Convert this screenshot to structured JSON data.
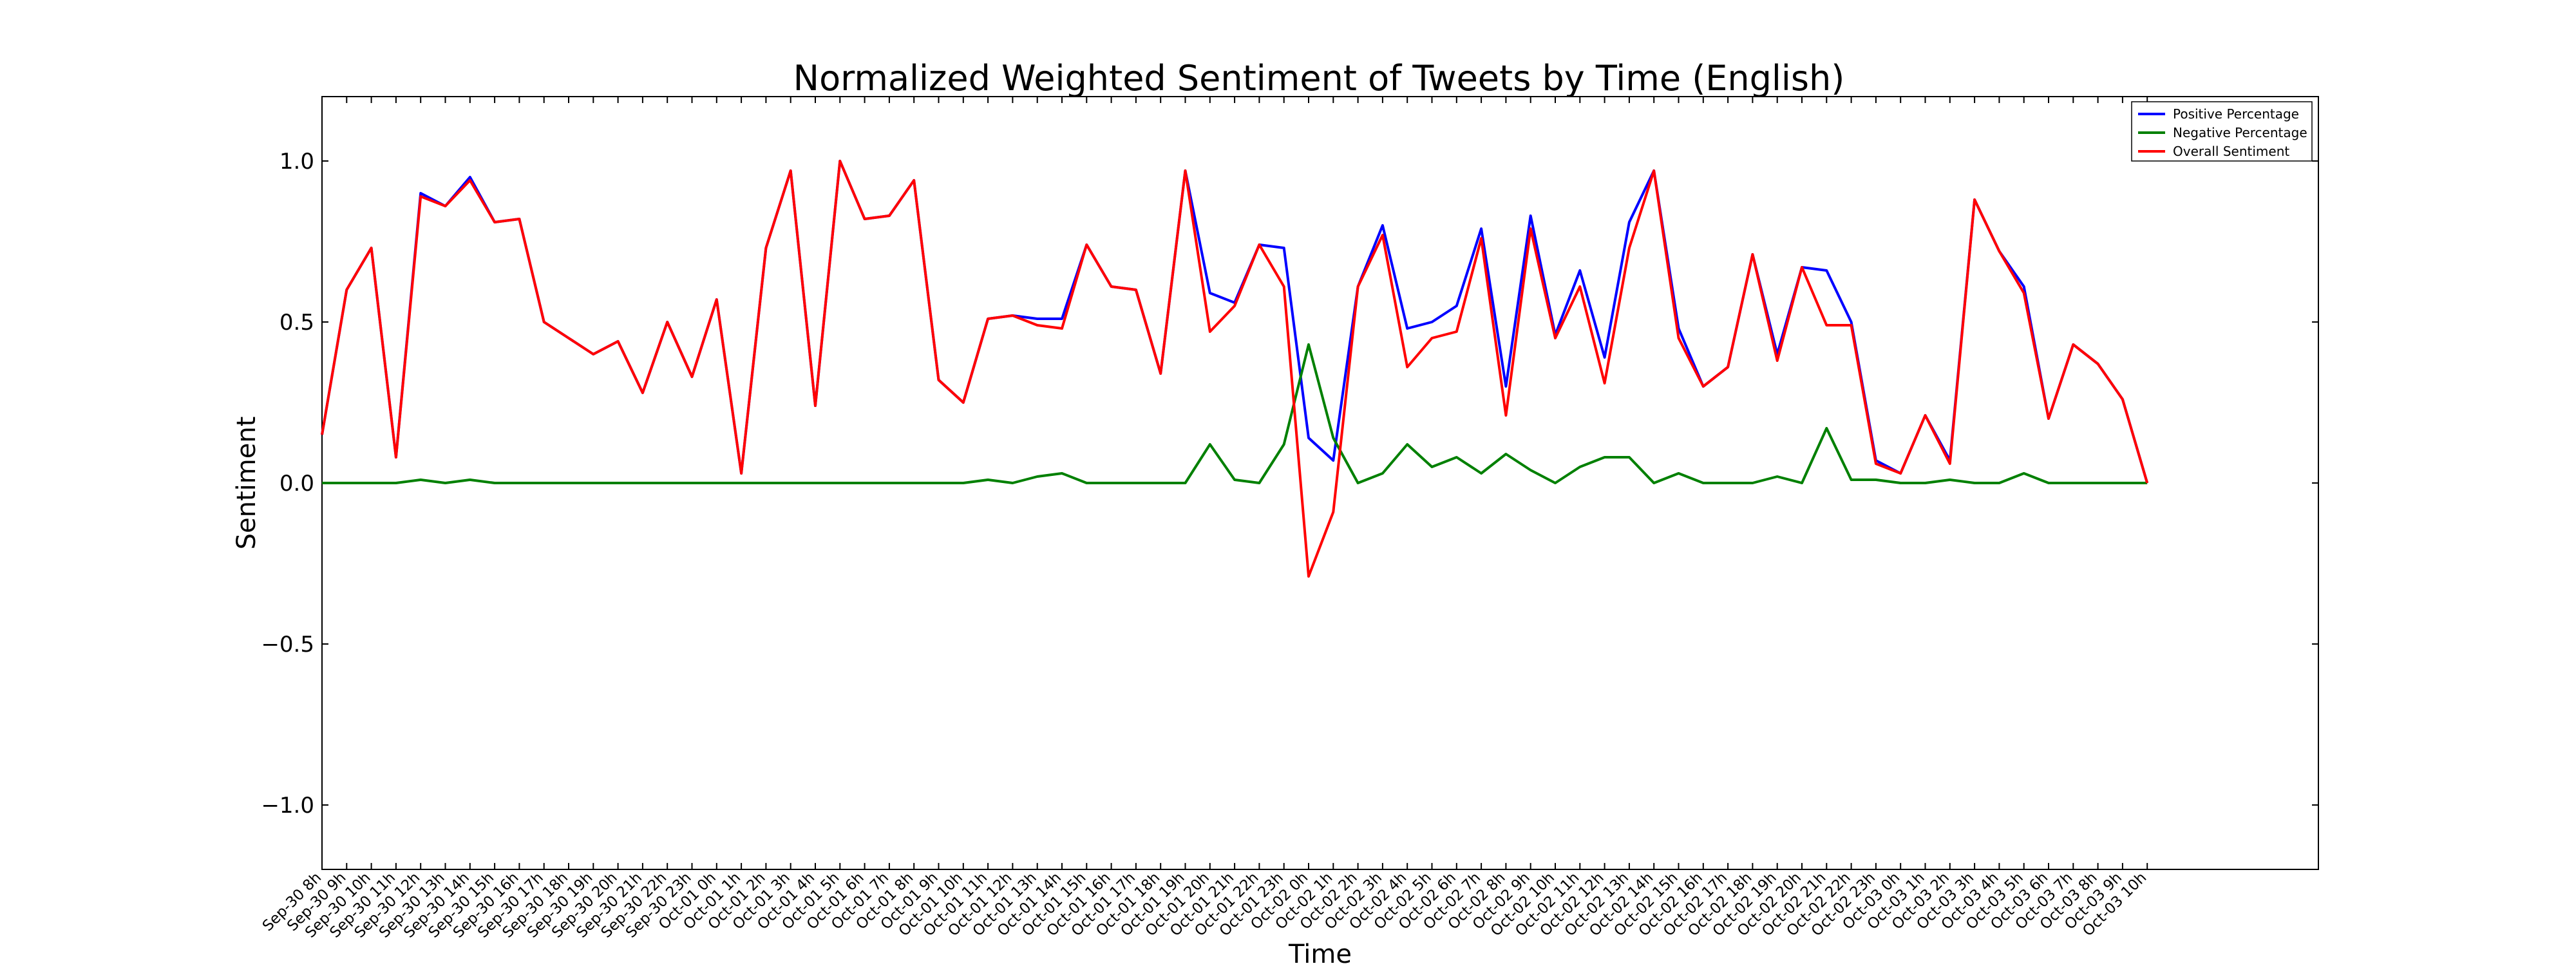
{
  "chart_data": {
    "type": "line",
    "title": "Normalized Weighted Sentiment of Tweets by Time (English)",
    "xlabel": "Time",
    "ylabel": "Sentiment",
    "ylim": [
      -1.2,
      1.2
    ],
    "yticks": [
      "−1.0",
      "−0.5",
      "0.0",
      "0.5",
      "1.0"
    ],
    "ytick_values": [
      -1.0,
      -0.5,
      0.0,
      0.5,
      1.0
    ],
    "grid": false,
    "legend_position": "top-right",
    "categories": [
      "Sep-30 8h",
      "Sep-30 9h",
      "Sep-30 10h",
      "Sep-30 11h",
      "Sep-30 12h",
      "Sep-30 13h",
      "Sep-30 14h",
      "Sep-30 15h",
      "Sep-30 16h",
      "Sep-30 17h",
      "Sep-30 18h",
      "Sep-30 19h",
      "Sep-30 20h",
      "Sep-30 21h",
      "Sep-30 22h",
      "Sep-30 23h",
      "Oct-01 0h",
      "Oct-01 1h",
      "Oct-01 2h",
      "Oct-01 3h",
      "Oct-01 4h",
      "Oct-01 5h",
      "Oct-01 6h",
      "Oct-01 7h",
      "Oct-01 8h",
      "Oct-01 9h",
      "Oct-01 10h",
      "Oct-01 11h",
      "Oct-01 12h",
      "Oct-01 13h",
      "Oct-01 14h",
      "Oct-01 15h",
      "Oct-01 16h",
      "Oct-01 17h",
      "Oct-01 18h",
      "Oct-01 19h",
      "Oct-01 20h",
      "Oct-01 21h",
      "Oct-01 22h",
      "Oct-01 23h",
      "Oct-02 0h",
      "Oct-02 1h",
      "Oct-02 2h",
      "Oct-02 3h",
      "Oct-02 4h",
      "Oct-02 5h",
      "Oct-02 6h",
      "Oct-02 7h",
      "Oct-02 8h",
      "Oct-02 9h",
      "Oct-02 10h",
      "Oct-02 11h",
      "Oct-02 12h",
      "Oct-02 13h",
      "Oct-02 14h",
      "Oct-02 15h",
      "Oct-02 16h",
      "Oct-02 17h",
      "Oct-02 18h",
      "Oct-02 19h",
      "Oct-02 20h",
      "Oct-02 21h",
      "Oct-02 22h",
      "Oct-02 23h",
      "Oct-03 0h",
      "Oct-03 1h",
      "Oct-03 2h",
      "Oct-03 3h",
      "Oct-03 4h",
      "Oct-03 5h",
      "Oct-03 6h",
      "Oct-03 7h",
      "Oct-03 8h",
      "Oct-03 9h",
      "Oct-03 10h"
    ],
    "series": [
      {
        "name": "Positive Percentage",
        "color": "#0000ff",
        "values": [
          0.15,
          0.6,
          0.73,
          0.08,
          0.9,
          0.86,
          0.95,
          0.81,
          0.82,
          0.5,
          0.45,
          0.4,
          0.44,
          0.28,
          0.5,
          0.33,
          0.57,
          0.03,
          0.73,
          0.97,
          0.24,
          1.0,
          0.82,
          0.83,
          0.94,
          0.32,
          0.25,
          0.51,
          0.52,
          0.51,
          0.51,
          0.74,
          0.61,
          0.6,
          0.34,
          0.97,
          0.59,
          0.56,
          0.74,
          0.73,
          0.14,
          0.07,
          0.61,
          0.8,
          0.48,
          0.5,
          0.55,
          0.79,
          0.3,
          0.83,
          0.46,
          0.66,
          0.39,
          0.81,
          0.97,
          0.48,
          0.3,
          0.36,
          0.71,
          0.4,
          0.67,
          0.66,
          0.5,
          0.07,
          0.03,
          0.21,
          0.07,
          0.88,
          0.72,
          0.61,
          0.2,
          0.43,
          0.37,
          0.26,
          0.0
        ]
      },
      {
        "name": "Negative Percentage",
        "color": "#008000",
        "values": [
          0.0,
          0.0,
          0.0,
          0.0,
          0.01,
          0.0,
          0.01,
          0.0,
          0.0,
          0.0,
          0.0,
          0.0,
          0.0,
          0.0,
          0.0,
          0.0,
          0.0,
          0.0,
          0.0,
          0.0,
          0.0,
          0.0,
          0.0,
          0.0,
          0.0,
          0.0,
          0.0,
          0.01,
          0.0,
          0.02,
          0.03,
          0.0,
          0.0,
          0.0,
          0.0,
          0.0,
          0.12,
          0.01,
          0.0,
          0.12,
          0.43,
          0.14,
          0.0,
          0.03,
          0.12,
          0.05,
          0.08,
          0.03,
          0.09,
          0.04,
          0.0,
          0.05,
          0.08,
          0.08,
          0.0,
          0.03,
          0.0,
          0.0,
          0.0,
          0.02,
          0.0,
          0.17,
          0.01,
          0.01,
          0.0,
          0.0,
          0.01,
          0.0,
          0.0,
          0.03,
          0.0,
          0.0,
          0.0,
          0.0,
          0.0
        ]
      },
      {
        "name": "Overall Sentiment",
        "color": "#ff0000",
        "values": [
          0.15,
          0.6,
          0.73,
          0.08,
          0.89,
          0.86,
          0.94,
          0.81,
          0.82,
          0.5,
          0.45,
          0.4,
          0.44,
          0.28,
          0.5,
          0.33,
          0.57,
          0.03,
          0.73,
          0.97,
          0.24,
          1.0,
          0.82,
          0.83,
          0.94,
          0.32,
          0.25,
          0.51,
          0.52,
          0.49,
          0.48,
          0.74,
          0.61,
          0.6,
          0.34,
          0.97,
          0.47,
          0.55,
          0.74,
          0.61,
          -0.29,
          -0.09,
          0.61,
          0.77,
          0.36,
          0.45,
          0.47,
          0.76,
          0.21,
          0.79,
          0.45,
          0.61,
          0.31,
          0.73,
          0.97,
          0.45,
          0.3,
          0.36,
          0.71,
          0.38,
          0.67,
          0.49,
          0.49,
          0.06,
          0.03,
          0.21,
          0.06,
          0.88,
          0.72,
          0.59,
          0.2,
          0.43,
          0.37,
          0.26,
          0.0
        ]
      }
    ]
  }
}
